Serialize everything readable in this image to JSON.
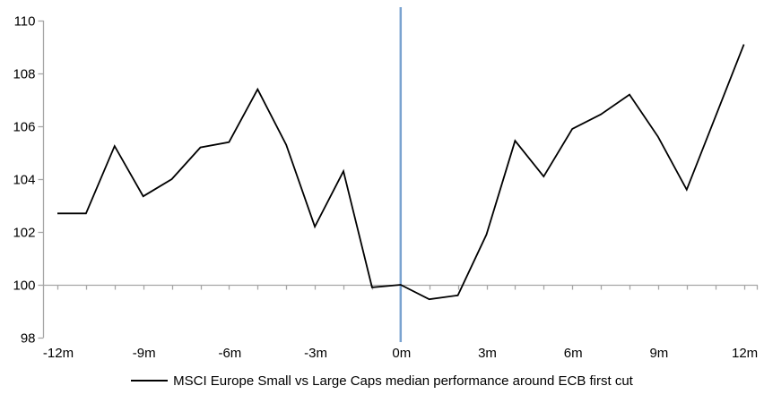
{
  "chart_data": {
    "type": "line",
    "title": "",
    "legend": "MSCI Europe Small vs Large Caps median performance around ECB first cut",
    "legend_position": "bottom-center",
    "grid": "baseline-only",
    "x": [
      -12,
      -11,
      -10,
      -9,
      -8,
      -7,
      -6,
      -5,
      -4,
      -3,
      -2,
      -1,
      0,
      1,
      2,
      3,
      4,
      5,
      6,
      7,
      8,
      9,
      10,
      11,
      12
    ],
    "series": [
      {
        "name": "MSCI Europe Small vs Large Caps median performance around ECB first cut",
        "values": [
          102.7,
          102.7,
          105.25,
          103.35,
          104.0,
          105.2,
          105.4,
          107.4,
          105.3,
          102.2,
          104.3,
          99.9,
          100.0,
          99.45,
          99.6,
          101.9,
          105.45,
          104.1,
          105.9,
          106.45,
          107.2,
          105.6,
          103.6,
          106.35,
          109.1
        ]
      }
    ],
    "xlabel": "",
    "ylabel": "",
    "xlim": [
      -12,
      12
    ],
    "ylim": [
      98,
      110
    ],
    "y_ticks": [
      98,
      100,
      102,
      104,
      106,
      108,
      110
    ],
    "x_tick_months": [
      -12,
      -9,
      -6,
      -3,
      0,
      3,
      6,
      9,
      12
    ],
    "x_tick_labels": [
      "-12m",
      "-9m",
      "-6m",
      "-3m",
      "0m",
      "3m",
      "6m",
      "9m",
      "12m"
    ],
    "event_line_x": 0,
    "baseline_y": 100,
    "colors": {
      "series": "#000000",
      "event_line": "#7AA3D0",
      "axis": "#A6A6A6",
      "text": "#000000",
      "background": "#FFFFFF"
    }
  }
}
